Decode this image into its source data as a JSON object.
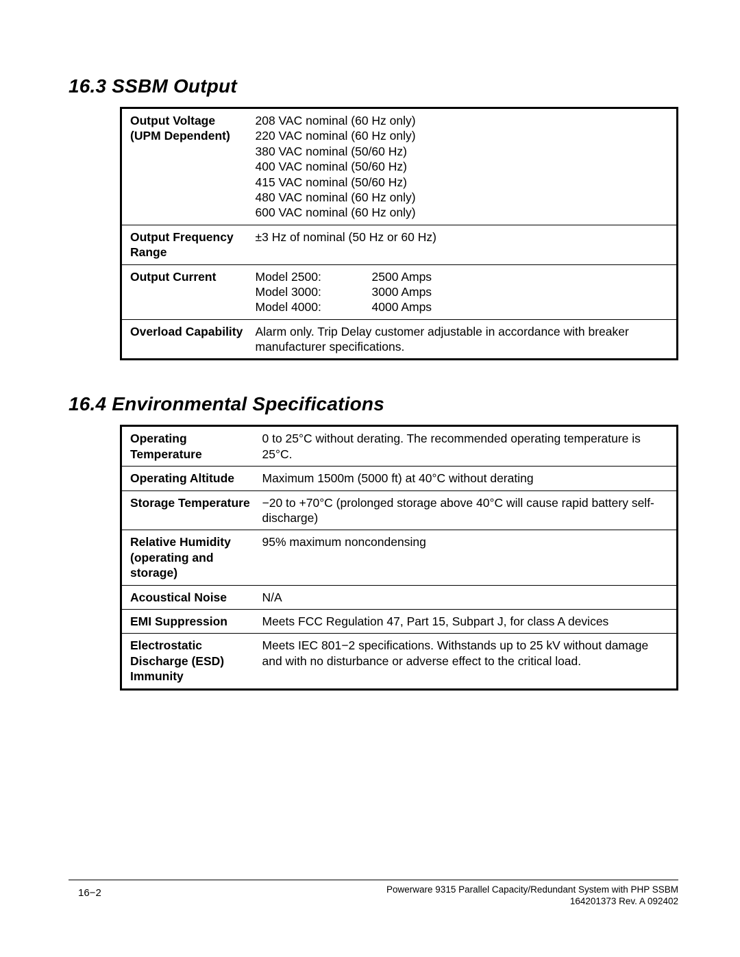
{
  "section1": {
    "heading": "16.3   SSBM  Output",
    "rows": [
      {
        "label": "Output Voltage (UPM Dependent)",
        "lines": [
          "208 VAC nominal (60 Hz only)",
          "220 VAC nominal (60 Hz only)",
          "380 VAC nominal (50/60 Hz)",
          "400 VAC nominal (50/60 Hz)",
          "415 VAC nominal (50/60 Hz)",
          "480 VAC nominal (60 Hz only)",
          "600 VAC nominal (60 Hz only)"
        ]
      },
      {
        "label": "Output Frequency Range",
        "lines": [
          "±3 Hz of nominal (50 Hz or 60 Hz)"
        ]
      },
      {
        "label": "Output Current",
        "twocol": [
          [
            "Model 2500:",
            "2500 Amps"
          ],
          [
            "Model 3000:",
            "3000 Amps"
          ],
          [
            "Model 4000:",
            "4000 Amps"
          ]
        ]
      },
      {
        "label": "Overload Capability",
        "lines": [
          "Alarm only.  Trip Delay customer adjustable in accordance with breaker manufacturer specifications."
        ]
      }
    ]
  },
  "section2": {
    "heading": "16.4   Environmental Specifications",
    "rows": [
      {
        "label": "Operating Temperature",
        "lines": [
          "0 to 25°C without derating.  The recommended operating temperature is 25°C."
        ]
      },
      {
        "label": "Operating Altitude",
        "lines": [
          "Maximum 1500m (5000 ft) at 40°C without derating"
        ]
      },
      {
        "label": "Storage Temperature",
        "lines": [
          "−20 to +70°C (prolonged storage above 40°C will cause rapid battery self-discharge)"
        ]
      },
      {
        "label": "Relative Humidity (operating and storage)",
        "lines": [
          "95% maximum noncondensing"
        ]
      },
      {
        "label": "Acoustical Noise",
        "lines": [
          "N/A"
        ]
      },
      {
        "label": "EMI Suppression",
        "lines": [
          "Meets FCC Regulation 47, Part 15, Subpart J, for class A devices"
        ]
      },
      {
        "label": "Electrostatic Discharge (ESD) Immunity",
        "lines": [
          "Meets IEC 801−2 specifications.  Withstands up to 25 kV without damage and with no disturbance or adverse effect to the critical load."
        ]
      }
    ]
  },
  "footer": {
    "page_num": "16−2",
    "line1": "Powerware 9315 Parallel Capacity/Redundant System with PHP SSBM",
    "line2": "164201373    Rev. A     092402"
  },
  "tables": {
    "label_width_t1": "190px",
    "label_width_t2": "200px"
  }
}
